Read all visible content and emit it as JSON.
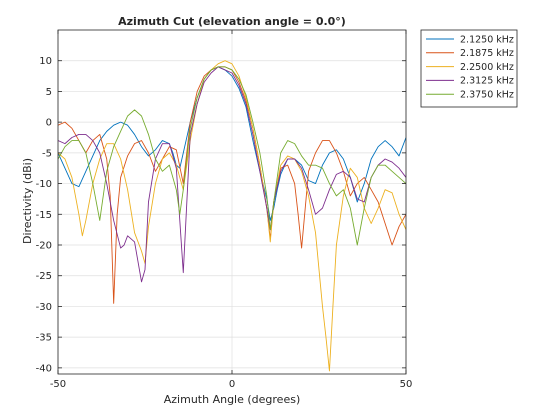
{
  "chart_data": {
    "type": "line",
    "title": "Azimuth Cut (elevation angle = 0.0°)",
    "xlabel": "Azimuth Angle (degrees)",
    "ylabel": "Directivity (dBi)",
    "xlim": [
      -50,
      50
    ],
    "ylim": [
      -41,
      15
    ],
    "xticks": [
      -50,
      0,
      50
    ],
    "yticks": [
      10,
      5,
      0,
      -5,
      -10,
      -15,
      -20,
      -25,
      -30,
      -35,
      -40
    ],
    "grid": true,
    "legend_position": "outside-top-right",
    "series": [
      {
        "name": "2.1250 kHz",
        "color": "#0072bd",
        "x": [
          -50,
          -48,
          -46,
          -44,
          -42,
          -40,
          -38,
          -36,
          -34,
          -32,
          -30,
          -28,
          -26,
          -24,
          -22,
          -20,
          -18,
          -17,
          -16,
          -15,
          -14,
          -12,
          -10,
          -8,
          -6,
          -4,
          -2,
          0,
          2,
          4,
          6,
          8,
          10,
          11,
          12,
          13,
          14,
          16,
          18,
          20,
          22,
          24,
          26,
          28,
          30,
          32,
          34,
          36,
          38,
          40,
          42,
          44,
          46,
          48,
          50
        ],
        "y": [
          -5,
          -7.5,
          -10,
          -10.5,
          -8,
          -5.5,
          -3,
          -1.5,
          -0.5,
          0,
          -0.5,
          -2,
          -4,
          -5.5,
          -4.5,
          -3,
          -3.5,
          -5,
          -7,
          -7.5,
          -5,
          0,
          4,
          7,
          8.5,
          9,
          8.5,
          7.5,
          5.5,
          2.5,
          -3,
          -8,
          -12.5,
          -16,
          -14,
          -11,
          -8.5,
          -6,
          -6,
          -7,
          -9.5,
          -10,
          -7,
          -5,
          -4.5,
          -6,
          -9,
          -13,
          -10,
          -6,
          -4,
          -3,
          -4,
          -5.5,
          -2.5
        ]
      },
      {
        "name": "2.1875 kHz",
        "color": "#d95319",
        "x": [
          -50,
          -48,
          -46,
          -44,
          -42,
          -40,
          -38,
          -36,
          -35,
          -34,
          -33,
          -32,
          -30,
          -28,
          -26,
          -24,
          -22,
          -20,
          -18,
          -16,
          -14,
          -12,
          -10,
          -8,
          -6,
          -4,
          -2,
          0,
          2,
          4,
          6,
          8,
          10,
          11,
          12,
          14,
          16,
          18,
          19,
          20,
          22,
          24,
          26,
          28,
          30,
          32,
          34,
          36,
          38,
          40,
          42,
          44,
          46,
          48,
          50
        ],
        "y": [
          -0.5,
          0,
          -1,
          -3,
          -5,
          -3,
          -2,
          -6,
          -12,
          -29.5,
          -15,
          -9,
          -5.5,
          -3.5,
          -3,
          -5,
          -8,
          -6,
          -4,
          -4.5,
          -10,
          0,
          5,
          7.5,
          8.5,
          9,
          9,
          8.5,
          6.5,
          3.5,
          -1,
          -7,
          -14,
          -19,
          -13,
          -7.5,
          -7,
          -10,
          -15,
          -20.5,
          -8,
          -5,
          -3,
          -3,
          -5,
          -8,
          -12,
          -10,
          -9,
          -11,
          -13,
          -16.5,
          -20,
          -17,
          -15
        ]
      },
      {
        "name": "2.2500 kHz",
        "color": "#edb120",
        "x": [
          -50,
          -48,
          -46,
          -44,
          -43,
          -42,
          -40,
          -38,
          -36,
          -34,
          -32,
          -30,
          -28,
          -26,
          -25,
          -24,
          -22,
          -20,
          -18,
          -16,
          -14,
          -12,
          -10,
          -8,
          -6,
          -4,
          -2,
          0,
          2,
          4,
          6,
          8,
          10,
          11,
          12,
          14,
          16,
          18,
          20,
          22,
          24,
          26,
          27,
          28,
          29,
          30,
          32,
          34,
          36,
          38,
          40,
          42,
          44,
          46,
          48,
          50
        ],
        "y": [
          -5,
          -6,
          -9,
          -15,
          -18.5,
          -16,
          -10,
          -6,
          -3.5,
          -3.5,
          -6,
          -11,
          -18,
          -21,
          -23,
          -17,
          -10,
          -6,
          -5,
          -7,
          -11,
          -3,
          3,
          7,
          8.5,
          9.5,
          10,
          9.5,
          7.5,
          4,
          -1,
          -7,
          -14,
          -19.5,
          -13,
          -7,
          -5.5,
          -6,
          -8,
          -12,
          -18,
          -30,
          -35,
          -40.5,
          -30,
          -20,
          -12,
          -7.5,
          -9,
          -14,
          -16.5,
          -14,
          -11,
          -11.5,
          -15,
          -17.5
        ]
      },
      {
        "name": "2.3125 kHz",
        "color": "#7e2f8e",
        "x": [
          -50,
          -48,
          -46,
          -44,
          -42,
          -40,
          -38,
          -36,
          -34,
          -32,
          -31,
          -30,
          -28,
          -26,
          -25,
          -24,
          -22,
          -20,
          -18,
          -16,
          -14,
          -12,
          -10,
          -8,
          -6,
          -4,
          -2,
          0,
          2,
          4,
          6,
          8,
          10,
          11,
          12,
          14,
          16,
          18,
          20,
          22,
          24,
          26,
          28,
          30,
          32,
          34,
          36,
          38,
          40,
          42,
          44,
          46,
          48,
          50
        ],
        "y": [
          -3,
          -3.5,
          -2.5,
          -2,
          -2,
          -3,
          -5,
          -10,
          -16,
          -20.5,
          -20,
          -18.5,
          -19.5,
          -26,
          -24,
          -13,
          -6,
          -3.5,
          -3.5,
          -7.5,
          -24.5,
          -2,
          3,
          6.5,
          8,
          9,
          8.5,
          8,
          6,
          3,
          -2,
          -8,
          -14,
          -17.5,
          -13,
          -8,
          -6,
          -6,
          -7.5,
          -11,
          -15,
          -14,
          -11,
          -8.5,
          -8,
          -9,
          -12.5,
          -13,
          -9,
          -7,
          -6,
          -6.5,
          -7.5,
          -9
        ]
      },
      {
        "name": "2.3750 kHz",
        "color": "#77ac30",
        "x": [
          -50,
          -48,
          -46,
          -44,
          -42,
          -40,
          -38,
          -36,
          -34,
          -32,
          -30,
          -28,
          -26,
          -24,
          -22,
          -20,
          -18,
          -16,
          -15,
          -14,
          -12,
          -10,
          -8,
          -6,
          -4,
          -2,
          0,
          2,
          4,
          6,
          8,
          10,
          11,
          12,
          14,
          16,
          18,
          20,
          22,
          24,
          26,
          28,
          30,
          32,
          34,
          36,
          38,
          40,
          42,
          44,
          46,
          48,
          50
        ],
        "y": [
          -6,
          -4,
          -3,
          -3,
          -5,
          -10,
          -16,
          -8,
          -4,
          -1.5,
          1,
          2,
          1,
          -2,
          -6,
          -8,
          -7,
          -11,
          -15,
          -11,
          -1,
          4,
          7,
          8.5,
          9,
          9,
          8.5,
          7,
          4.5,
          0,
          -5,
          -12,
          -17.5,
          -13,
          -5,
          -3,
          -3.5,
          -5.5,
          -7,
          -7,
          -7.5,
          -10,
          -12,
          -11,
          -14,
          -20,
          -14,
          -9,
          -7,
          -7,
          -8,
          -9,
          -10
        ]
      }
    ]
  }
}
